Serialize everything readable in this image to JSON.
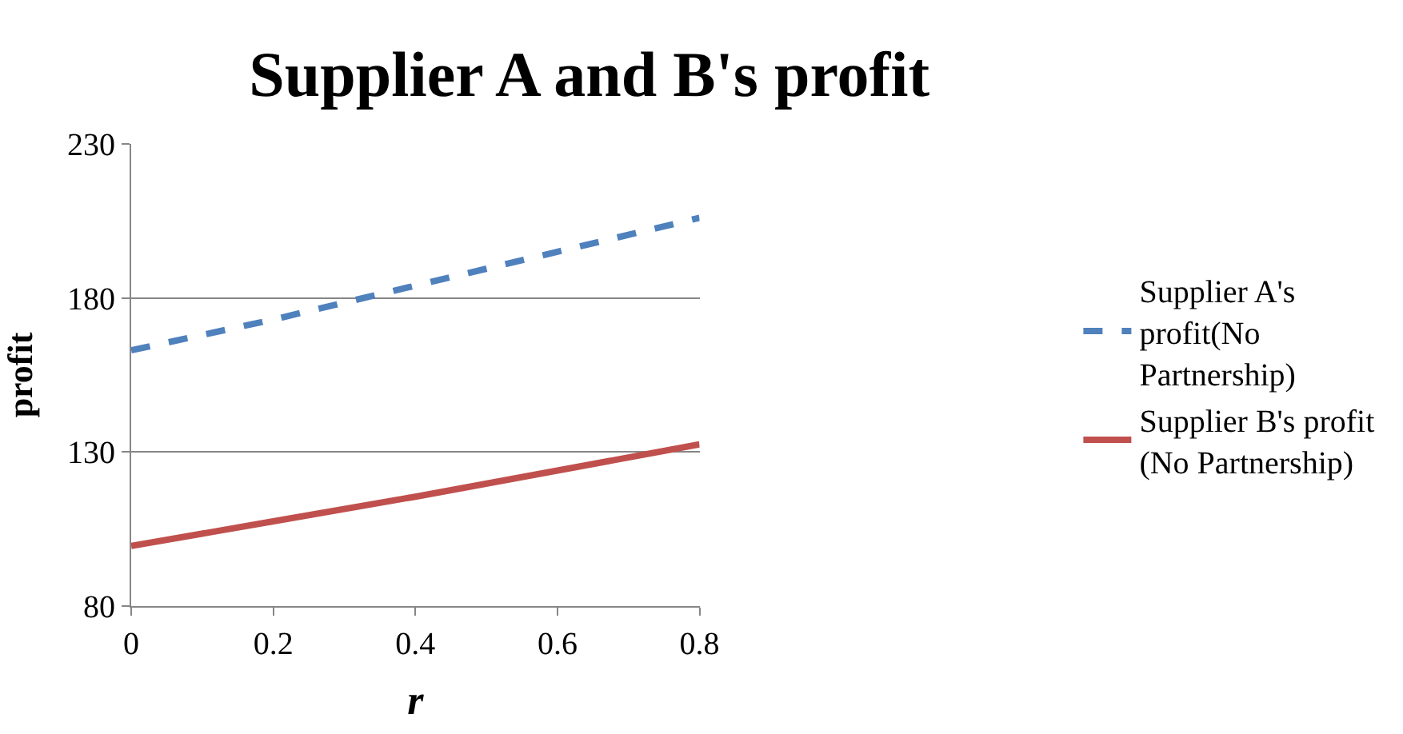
{
  "chart_data": {
    "type": "line",
    "title": "Supplier A and B's profit",
    "xlabel": "r",
    "ylabel": "profit",
    "x": [
      0,
      0.2,
      0.4,
      0.6,
      0.8
    ],
    "series": [
      {
        "name": "Supplier A's profit(No Partnership)",
        "color": "#4f81bd",
        "line_style": "dashed",
        "values": [
          163,
          173,
          184,
          195,
          206
        ]
      },
      {
        "name": "Supplier B's profit (No Partnership)",
        "color": "#c0504d",
        "line_style": "solid",
        "values": [
          99.5,
          107.5,
          115.5,
          124,
          132.5
        ]
      }
    ],
    "xlim": [
      0,
      0.8
    ],
    "xticks": [
      0,
      0.2,
      0.4,
      0.6,
      0.8
    ],
    "ylim": [
      80,
      230
    ],
    "yticks": [
      80,
      130,
      180,
      230
    ],
    "grid": "y",
    "legend": "right",
    "marker": "none"
  }
}
